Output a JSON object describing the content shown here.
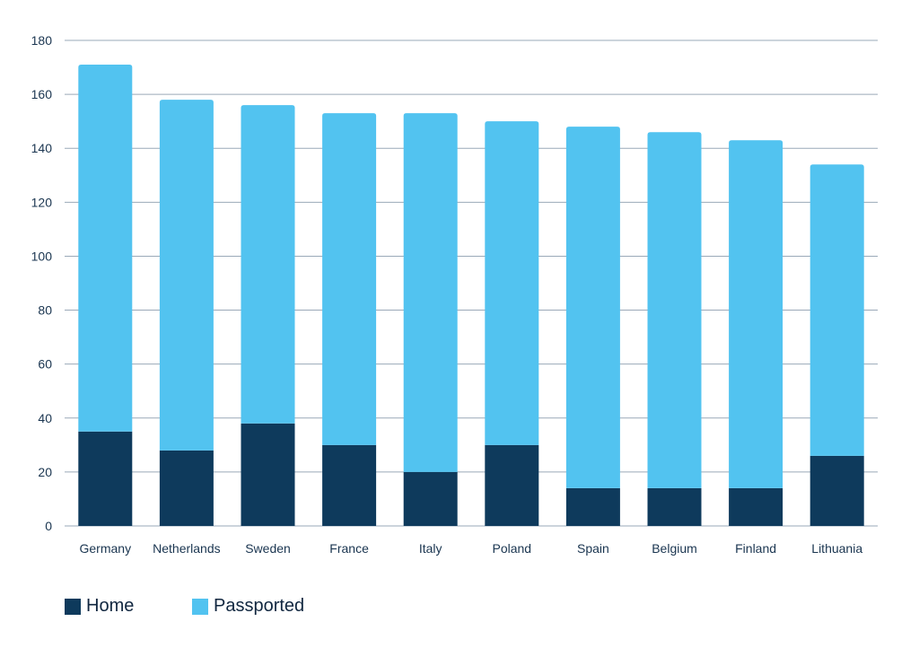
{
  "chart_data": {
    "type": "bar",
    "stacked": true,
    "categories": [
      "Germany",
      "Netherlands",
      "Sweden",
      "France",
      "Italy",
      "Poland",
      "Spain",
      "Belgium",
      "Finland",
      "Lithuania"
    ],
    "series": [
      {
        "name": "Home",
        "color": "#0e3a5c",
        "values": [
          35,
          28,
          38,
          30,
          20,
          30,
          14,
          14,
          14,
          26
        ]
      },
      {
        "name": "Passported",
        "color": "#52c3f0",
        "values": [
          136,
          130,
          118,
          123,
          133,
          120,
          134,
          132,
          129,
          108
        ]
      }
    ],
    "title": "",
    "xlabel": "",
    "ylabel": "",
    "ylim": [
      0,
      180
    ],
    "yticks": [
      0,
      20,
      40,
      60,
      80,
      100,
      120,
      140,
      160,
      180
    ],
    "grid": true,
    "legend_position": "bottom-left"
  }
}
